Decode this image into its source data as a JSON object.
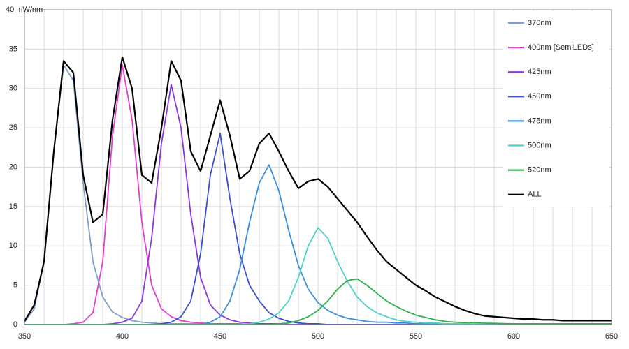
{
  "chart_data": {
    "type": "line",
    "x": [
      350,
      355,
      360,
      365,
      370,
      375,
      380,
      385,
      390,
      395,
      400,
      405,
      410,
      415,
      420,
      425,
      430,
      435,
      440,
      445,
      450,
      455,
      460,
      465,
      470,
      475,
      480,
      485,
      490,
      495,
      500,
      505,
      510,
      515,
      520,
      525,
      530,
      535,
      540,
      545,
      550,
      555,
      560,
      565,
      570,
      575,
      580,
      585,
      590,
      595,
      600,
      605,
      610,
      615,
      620,
      625,
      630,
      635,
      640,
      645,
      650
    ],
    "series": [
      {
        "name": "370nm",
        "color": "#7f9fc8",
        "values": [
          0.3,
          2,
          8,
          22,
          33,
          31,
          18,
          8,
          3.5,
          1.6,
          0.9,
          0.5,
          0.3,
          0.2,
          0.1,
          0.1,
          0.1,
          0.1,
          0.1,
          0.1,
          0.1,
          0,
          0,
          0,
          0,
          0,
          0,
          0,
          0,
          0,
          0,
          0,
          0,
          0,
          0,
          0,
          0,
          0,
          0,
          0,
          0,
          0,
          0,
          0,
          0,
          0,
          0,
          0,
          0,
          0,
          0,
          0,
          0,
          0,
          0,
          0,
          0,
          0,
          0,
          0,
          0
        ]
      },
      {
        "name": "400nm [SemiLEDs]",
        "color": "#e040d0",
        "values": [
          0,
          0,
          0,
          0,
          0,
          0.1,
          0.3,
          1.5,
          8,
          24,
          33,
          26,
          13,
          5,
          2,
          1,
          0.5,
          0.3,
          0.2,
          0.1,
          0.1,
          0.1,
          0.1,
          0,
          0,
          0,
          0,
          0,
          0,
          0,
          0,
          0,
          0,
          0,
          0,
          0,
          0,
          0,
          0,
          0,
          0,
          0,
          0,
          0,
          0,
          0,
          0,
          0,
          0,
          0,
          0,
          0,
          0,
          0,
          0,
          0,
          0,
          0,
          0,
          0,
          0
        ]
      },
      {
        "name": "425nm",
        "color": "#8a3ad8",
        "values": [
          0,
          0,
          0,
          0,
          0,
          0,
          0,
          0,
          0,
          0.1,
          0.3,
          0.8,
          3,
          11,
          23,
          30.5,
          25,
          14,
          6,
          2.5,
          1.2,
          0.6,
          0.3,
          0.2,
          0.1,
          0.1,
          0.1,
          0,
          0,
          0,
          0,
          0,
          0,
          0,
          0,
          0,
          0,
          0,
          0,
          0,
          0,
          0,
          0,
          0,
          0,
          0,
          0,
          0,
          0,
          0,
          0,
          0,
          0,
          0,
          0,
          0,
          0,
          0,
          0,
          0,
          0
        ]
      },
      {
        "name": "450nm",
        "color": "#3a4fc8",
        "values": [
          0,
          0,
          0,
          0,
          0,
          0,
          0,
          0,
          0,
          0,
          0,
          0,
          0,
          0,
          0.1,
          0.3,
          1,
          3,
          9,
          19,
          24.3,
          16,
          9,
          5,
          3,
          1.5,
          0.8,
          0.4,
          0.2,
          0.1,
          0.1,
          0,
          0,
          0,
          0,
          0,
          0,
          0,
          0,
          0,
          0,
          0,
          0,
          0,
          0,
          0,
          0,
          0,
          0,
          0,
          0,
          0,
          0,
          0,
          0,
          0,
          0,
          0,
          0,
          0,
          0
        ]
      },
      {
        "name": "475nm",
        "color": "#3a8ee0",
        "values": [
          0,
          0,
          0,
          0,
          0,
          0,
          0,
          0,
          0,
          0,
          0,
          0,
          0,
          0,
          0,
          0,
          0,
          0,
          0,
          0.3,
          1,
          3,
          7,
          13,
          18,
          20.3,
          17,
          12,
          7.5,
          4.5,
          2.8,
          1.8,
          1.2,
          0.8,
          0.6,
          0.4,
          0.3,
          0.3,
          0.2,
          0.2,
          0.1,
          0.1,
          0.1,
          0.1,
          0.1,
          0,
          0,
          0,
          0,
          0,
          0,
          0,
          0,
          0,
          0,
          0,
          0,
          0,
          0,
          0,
          0
        ]
      },
      {
        "name": "500nm",
        "color": "#4fd0c8",
        "values": [
          0,
          0,
          0,
          0,
          0,
          0,
          0,
          0,
          0,
          0,
          0,
          0,
          0,
          0,
          0,
          0,
          0,
          0,
          0,
          0,
          0,
          0,
          0,
          0.1,
          0.3,
          0.7,
          1.5,
          3,
          6,
          10,
          12.3,
          11,
          8,
          5.5,
          3.5,
          2.3,
          1.5,
          1,
          0.6,
          0.4,
          0.3,
          0.2,
          0.2,
          0.1,
          0.1,
          0.1,
          0,
          0,
          0,
          0,
          0,
          0,
          0,
          0,
          0,
          0,
          0,
          0,
          0,
          0,
          0
        ]
      },
      {
        "name": "520nm",
        "color": "#2eb04e",
        "values": [
          0,
          0,
          0,
          0,
          0,
          0,
          0,
          0,
          0,
          0,
          0,
          0,
          0,
          0,
          0,
          0,
          0,
          0,
          0,
          0,
          0,
          0,
          0,
          0,
          0,
          0,
          0.1,
          0.2,
          0.5,
          1,
          1.8,
          3,
          4.5,
          5.6,
          5.8,
          5,
          4,
          3,
          2.3,
          1.7,
          1.2,
          0.9,
          0.6,
          0.4,
          0.3,
          0.25,
          0.2,
          0.18,
          0.15,
          0.12,
          0.1,
          0.1,
          0.1,
          0.1,
          0.1,
          0.1,
          0.1,
          0.1,
          0.1,
          0.1,
          0.1
        ]
      },
      {
        "name": "ALL",
        "color": "#000000",
        "values": [
          0.4,
          2.5,
          8,
          22,
          33.5,
          32,
          19,
          13,
          14,
          26,
          34,
          30,
          19,
          18,
          25,
          33.5,
          31,
          22,
          19.5,
          24,
          28.5,
          24,
          18.5,
          19.5,
          23,
          24.3,
          22,
          19.5,
          17.3,
          18.2,
          18.5,
          17.5,
          16,
          14.5,
          13,
          11.2,
          9.5,
          8,
          7,
          6,
          5,
          4.3,
          3.5,
          2.9,
          2.3,
          1.8,
          1.4,
          1.1,
          1,
          0.9,
          0.8,
          0.7,
          0.7,
          0.6,
          0.6,
          0.5,
          0.5,
          0.5,
          0.5,
          0.5,
          0.5
        ]
      }
    ],
    "xlim": [
      350,
      650
    ],
    "xticks": [
      350,
      400,
      450,
      500,
      550,
      600,
      650
    ],
    "xminor_ticks": [
      360,
      370,
      380,
      390,
      410,
      420,
      430,
      440,
      460,
      470,
      480,
      490,
      510,
      520,
      530,
      540,
      560,
      570,
      580,
      590,
      610,
      620,
      630,
      640
    ],
    "ylim": [
      0,
      40
    ],
    "yticks": [
      0,
      5,
      10,
      15,
      20,
      25,
      30,
      35,
      {
        "value": 40,
        "label": "40 mW/nm"
      }
    ],
    "grid": true,
    "legend": "right"
  }
}
